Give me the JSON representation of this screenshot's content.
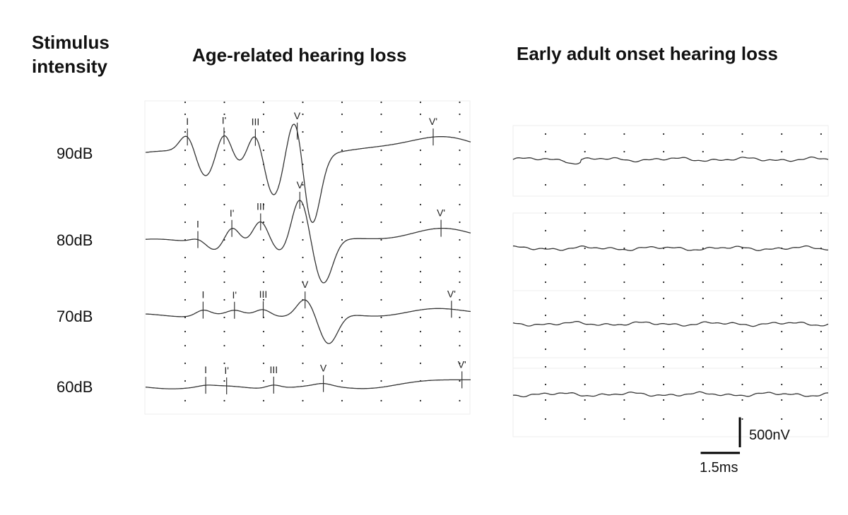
{
  "labels": {
    "stimulus_line1": "Stimulus",
    "stimulus_line2": "intensity",
    "panel_left_title": "Age-related hearing loss",
    "panel_right_title": "Early adult onset hearing loss",
    "scale_amplitude": "500nV",
    "scale_time": "1.5ms"
  },
  "colors": {
    "trace": "#333333",
    "frame": "#eeeeee",
    "dot": "#222222",
    "scalebar": "#000000"
  },
  "chart_data": [
    {
      "type": "line",
      "title": "Age-related hearing loss",
      "row_labels": [
        "90dB",
        "80dB",
        "70dB",
        "60dB"
      ],
      "time_scale_ms": 1.5,
      "amplitude_scale_nV": 500,
      "series": [
        {
          "name": "90dB",
          "peaks": [
            {
              "label": "I",
              "t_ms": 1.6,
              "v_nV": 300
            },
            {
              "label": "I'",
              "t_ms": 3.0,
              "v_nV": 400
            },
            {
              "label": "III",
              "t_ms": 4.2,
              "v_nV": 380
            },
            {
              "label": "V",
              "t_ms": 5.8,
              "v_nV": 880
            },
            {
              "label": "V'",
              "t_ms": 11.0,
              "v_nV": 260
            }
          ],
          "troughs": [
            {
              "t_ms": 2.3,
              "v_nV": -400
            },
            {
              "t_ms": 3.6,
              "v_nV": -200
            },
            {
              "t_ms": 4.9,
              "v_nV": -760
            },
            {
              "t_ms": 6.3,
              "v_nV": -1350
            }
          ]
        },
        {
          "name": "80dB",
          "peaks": [
            {
              "label": "I",
              "t_ms": 2.0,
              "v_nV": 60
            },
            {
              "label": "I'",
              "t_ms": 3.3,
              "v_nV": 250
            },
            {
              "label": "III",
              "t_ms": 4.4,
              "v_nV": 320
            },
            {
              "label": "V",
              "t_ms": 5.9,
              "v_nV": 750
            },
            {
              "label": "V'",
              "t_ms": 11.3,
              "v_nV": 180
            }
          ],
          "troughs": [
            {
              "t_ms": 2.7,
              "v_nV": -150
            },
            {
              "t_ms": 3.8,
              "v_nV": -60
            },
            {
              "t_ms": 5.2,
              "v_nV": -200
            },
            {
              "t_ms": 6.8,
              "v_nV": -720
            }
          ]
        },
        {
          "name": "70dB",
          "peaks": [
            {
              "label": "I",
              "t_ms": 2.2,
              "v_nV": 100
            },
            {
              "label": "I'",
              "t_ms": 3.4,
              "v_nV": 60
            },
            {
              "label": "III",
              "t_ms": 4.5,
              "v_nV": 100
            },
            {
              "label": "V",
              "t_ms": 6.1,
              "v_nV": 280
            },
            {
              "label": "V'",
              "t_ms": 11.7,
              "v_nV": 100
            }
          ],
          "troughs": [
            {
              "t_ms": 7.0,
              "v_nV": -500
            }
          ]
        },
        {
          "name": "60dB",
          "peaks": [
            {
              "label": "I",
              "t_ms": 2.3,
              "v_nV": 20
            },
            {
              "label": "I'",
              "t_ms": 3.1,
              "v_nV": 0
            },
            {
              "label": "III",
              "t_ms": 4.9,
              "v_nV": 60
            },
            {
              "label": "V",
              "t_ms": 6.8,
              "v_nV": 40
            },
            {
              "label": "V'",
              "t_ms": 12.1,
              "v_nV": 150
            }
          ],
          "troughs": []
        }
      ]
    },
    {
      "type": "line",
      "title": "Early adult onset hearing loss",
      "row_labels": [
        "90dB",
        "80dB",
        "70dB",
        "60dB"
      ],
      "time_scale_ms": 1.5,
      "amplitude_scale_nV": 500,
      "series": [
        {
          "name": "90dB",
          "response": "absent"
        },
        {
          "name": "80dB",
          "response": "absent"
        },
        {
          "name": "70dB",
          "response": "absent"
        },
        {
          "name": "60dB",
          "response": "absent"
        }
      ]
    }
  ]
}
